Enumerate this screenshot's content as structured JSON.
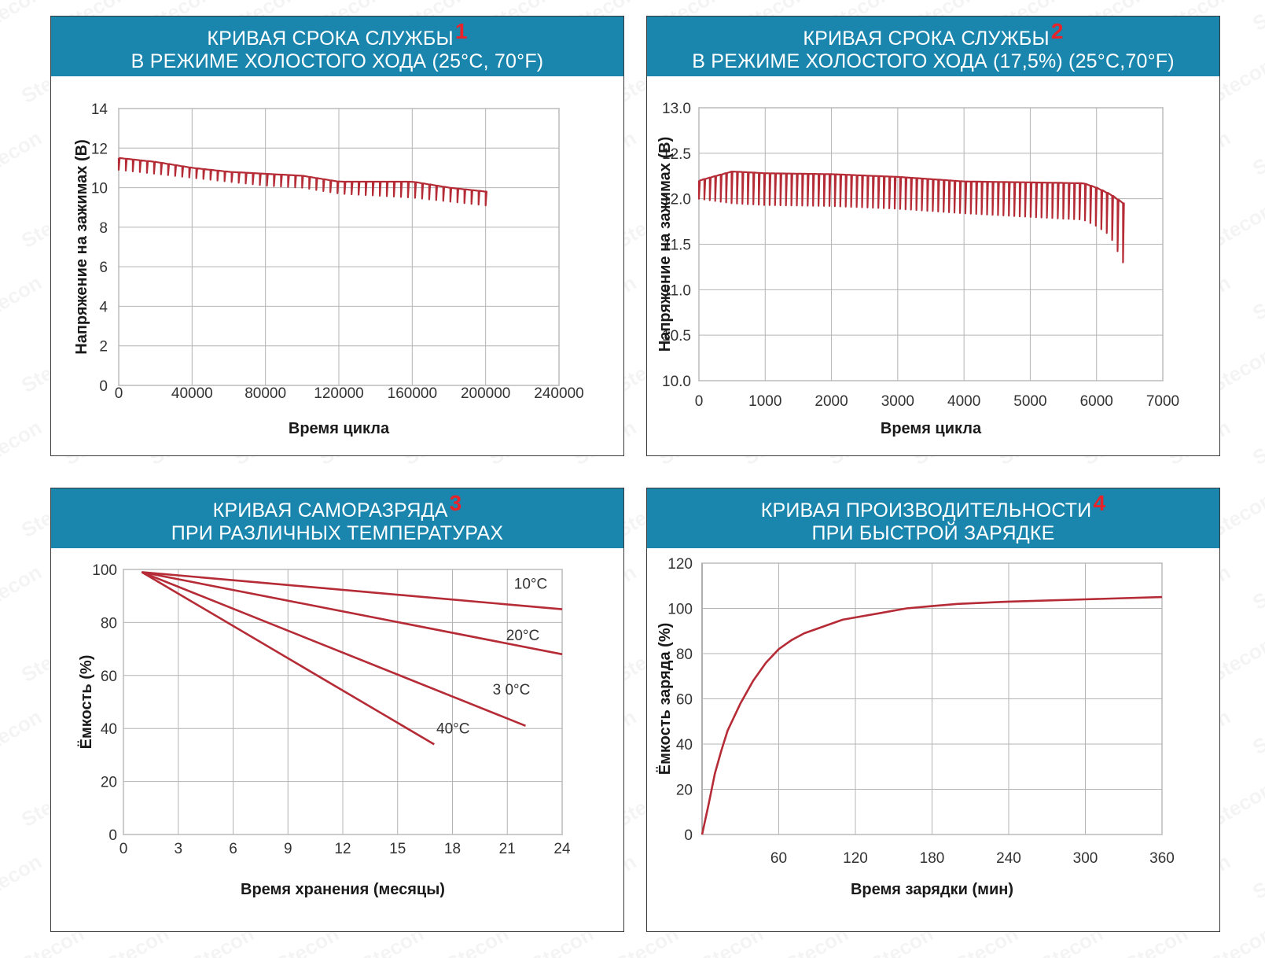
{
  "panels": [
    {
      "title1": "КРИВАЯ СРОКА СЛУЖБЫ",
      "title2": "В РЕЖИМЕ ХОЛОСТОГО ХОДА (25°C, 70°F)",
      "number": "1"
    },
    {
      "title1": "КРИВАЯ СРОКА СЛУЖБЫ",
      "title2": "В РЕЖИМЕ ХОЛОСТОГО ХОДА (17,5%) (25°C,70°F)",
      "number": "2"
    },
    {
      "title1": "КРИВАЯ САМОРАЗРЯДА",
      "title2": "ПРИ РАЗЛИЧНЫХ ТЕМПЕРАТУРАХ",
      "number": "3"
    },
    {
      "title1": "КРИВАЯ ПРОИЗВОДИТЕЛЬНОСТИ",
      "title2": "ПРИ БЫСТРОЙ ЗАРЯДКЕ",
      "number": "4"
    }
  ],
  "colors": {
    "header": "#1a86ad",
    "line": "#b52b36",
    "grid": "#b4b4b4",
    "number": "#e8242b"
  },
  "watermark_text": "Stecon",
  "chart_data": [
    {
      "type": "line",
      "title": "КРИВАЯ СРОКА СЛУЖБЫ В РЕЖИМЕ ХОЛОСТОГО ХОДА (25°C, 70°F)",
      "xlabel": "Время цикла",
      "ylabel": "Напряжение на зажимах (В)",
      "xlim": [
        0,
        240000
      ],
      "ylim": [
        0,
        14
      ],
      "x_ticks": [
        "0",
        "40000",
        "80000",
        "120000",
        "160000",
        "200000",
        "240000"
      ],
      "y_ticks": [
        "0",
        "2",
        "4",
        "6",
        "8",
        "10",
        "12",
        "14"
      ],
      "grid": true,
      "series": [
        {
          "style": "sawtooth",
          "x": [
            0,
            20000,
            40000,
            60000,
            80000,
            100000,
            120000,
            140000,
            160000,
            180000,
            200000
          ],
          "upper": [
            11.5,
            11.3,
            11.0,
            10.8,
            10.7,
            10.6,
            10.3,
            10.3,
            10.3,
            10.0,
            9.8
          ],
          "lower": [
            10.9,
            10.7,
            10.5,
            10.3,
            10.1,
            10.0,
            9.7,
            9.6,
            9.5,
            9.3,
            9.1
          ]
        }
      ]
    },
    {
      "type": "line",
      "title": "КРИВАЯ СРОКА СЛУЖБЫ В РЕЖИМЕ ХОЛОСТОГО ХОДА (17,5%) (25°C,70°F)",
      "xlabel": "Время цикла",
      "ylabel": "Напряжение на зажимах (В)",
      "xlim": [
        0,
        7000
      ],
      "ylim": [
        10.0,
        13.0
      ],
      "x_ticks": [
        "0",
        "1000",
        "2000",
        "3000",
        "4000",
        "5000",
        "6000",
        "7000"
      ],
      "y_ticks": [
        "10.0",
        "10.5",
        "11.0",
        "11.5",
        "12.0",
        "12.5",
        "13.0"
      ],
      "grid": true,
      "series": [
        {
          "style": "sawtooth",
          "x": [
            0,
            500,
            1000,
            2000,
            3000,
            4000,
            5000,
            5800,
            6000,
            6200,
            6400
          ],
          "upper": [
            12.2,
            12.3,
            12.28,
            12.27,
            12.24,
            12.19,
            12.18,
            12.17,
            12.12,
            12.05,
            11.95
          ],
          "lower": [
            12.0,
            11.95,
            11.93,
            11.92,
            11.89,
            11.84,
            11.8,
            11.77,
            11.7,
            11.6,
            11.3
          ]
        }
      ]
    },
    {
      "type": "line",
      "title": "КРИВАЯ САМОРАЗРЯДА ПРИ РАЗЛИЧНЫХ ТЕМПЕРАТУРАХ",
      "xlabel": "Время хранения (месяцы)",
      "ylabel": "Ёмкость (%)",
      "xlim": [
        0,
        24
      ],
      "ylim": [
        0,
        100
      ],
      "x_ticks": [
        "0",
        "3",
        "6",
        "9",
        "12",
        "15",
        "18",
        "21",
        "24"
      ],
      "y_ticks": [
        "0",
        "20",
        "40",
        "60",
        "80",
        "100"
      ],
      "grid": true,
      "series": [
        {
          "name": "10°C",
          "x": [
            1,
            24
          ],
          "y": [
            99,
            85
          ]
        },
        {
          "name": "20°C",
          "x": [
            1,
            24
          ],
          "y": [
            99,
            68
          ]
        },
        {
          "name": "3 0°C",
          "x": [
            1,
            22
          ],
          "y": [
            99,
            41
          ]
        },
        {
          "name": "40°C",
          "x": [
            1,
            17
          ],
          "y": [
            99,
            34
          ]
        }
      ]
    },
    {
      "type": "line",
      "title": "КРИВАЯ ПРОИЗВОДИТЕЛЬНОСТИ ПРИ БЫСТРОЙ ЗАРЯДКЕ",
      "xlabel": "Время зарядки (мин)",
      "ylabel": "Ёмкость заряда (%)",
      "xlim": [
        0,
        360
      ],
      "ylim": [
        0,
        120
      ],
      "x_ticks": [
        "60",
        "120",
        "180",
        "240",
        "300",
        "360"
      ],
      "y_ticks": [
        "0",
        "20",
        "40",
        "60",
        "80",
        "100",
        "120"
      ],
      "grid": true,
      "series": [
        {
          "x": [
            0,
            5,
            10,
            15,
            20,
            30,
            40,
            50,
            60,
            70,
            80,
            90,
            100,
            110,
            120,
            140,
            160,
            180,
            200,
            240,
            300,
            360
          ],
          "y": [
            0,
            13,
            27,
            37,
            46,
            58,
            68,
            76,
            82,
            86,
            89,
            91,
            93,
            95,
            96,
            98,
            100,
            101,
            102,
            103,
            104,
            105
          ]
        }
      ]
    }
  ]
}
